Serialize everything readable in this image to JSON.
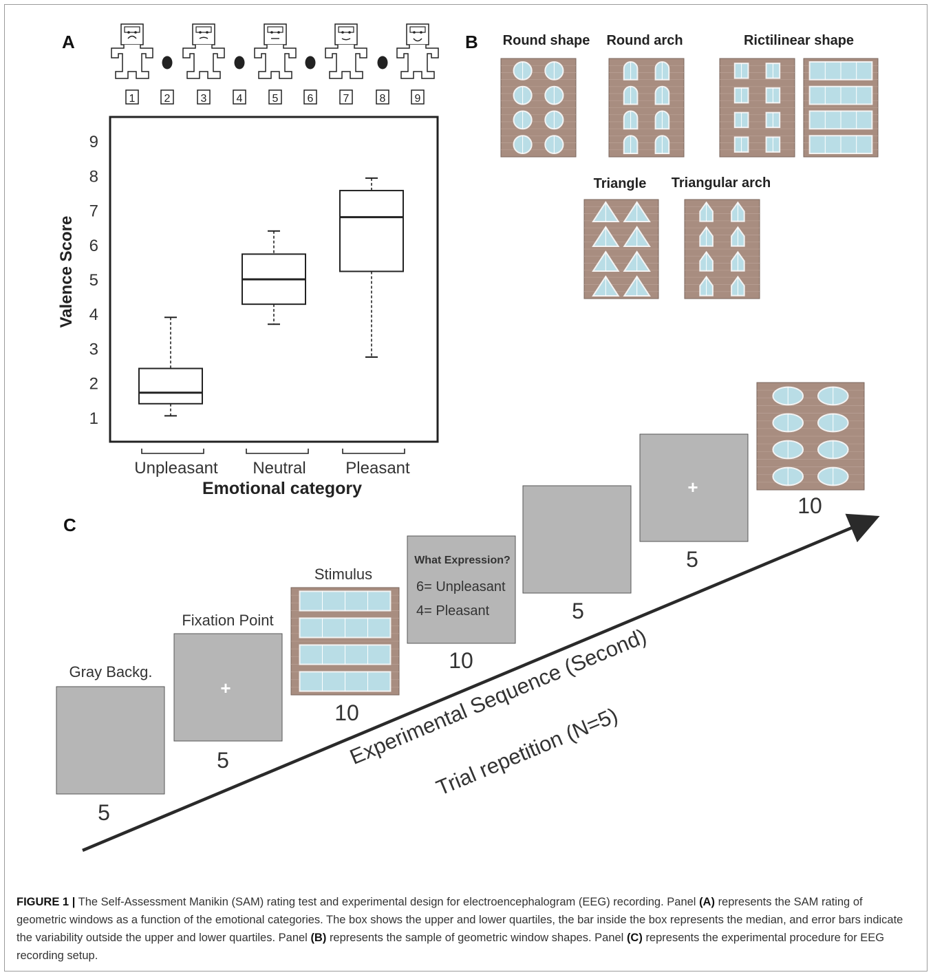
{
  "panels": {
    "a": "A",
    "b": "B",
    "c": "C"
  },
  "sam_scale": {
    "numbers": [
      "1",
      "2",
      "3",
      "4",
      "5",
      "6",
      "7",
      "8",
      "9"
    ]
  },
  "chart_data": {
    "type": "box",
    "ylabel": "Valence Score",
    "xlabel": "Emotional category",
    "ylim": [
      0.3,
      9.7
    ],
    "yticks": [
      1,
      2,
      3,
      4,
      5,
      6,
      7,
      8,
      9
    ],
    "categories": [
      "Unpleasant",
      "Neutral",
      "Pleasant"
    ],
    "boxes": [
      {
        "category": "Unpleasant",
        "whisker_low": 1.05,
        "q1": 1.4,
        "median": 1.72,
        "q3": 2.42,
        "whisker_high": 3.9
      },
      {
        "category": "Neutral",
        "whisker_low": 3.7,
        "q1": 4.28,
        "median": 5.0,
        "q3": 5.73,
        "whisker_high": 6.4
      },
      {
        "category": "Pleasant",
        "whisker_low": 2.75,
        "q1": 5.23,
        "median": 6.8,
        "q3": 7.57,
        "whisker_high": 7.93
      }
    ],
    "grid": false
  },
  "shapes": {
    "round_shape": "Round shape",
    "round_arch": "Round arch",
    "rectilinear": "Rictilinear shape",
    "triangle": "Triangle",
    "triangular_arch": "Triangular arch"
  },
  "sequence": {
    "gray_label": "Gray Backg.",
    "fixation_label": "Fixation Point",
    "stimulus_label": "Stimulus",
    "question_title": "What Expression?",
    "question_line1": "6= Unpleasant",
    "question_line2": "4= Pleasant",
    "durations": [
      "5",
      "5",
      "10",
      "10",
      "5",
      "5",
      "10"
    ],
    "cross": "+",
    "axis_label": "Experimental Sequence (Second)",
    "trial_label": "Trial repetition (N=5)"
  },
  "caption": {
    "lead": "FIGURE 1",
    "sep": "|",
    "part1": "The Self-Assessment Manikin (SAM) rating test and experimental design for electroencephalogram (EEG) recording. Panel",
    "ref_a": "(A)",
    "part2": "represents the SAM rating of geometric windows as a function of the emotional categories. The box shows the upper and lower quartiles, the bar inside the box represents the median, and error bars indicate the variability outside the upper and lower quartiles. Panel",
    "ref_b": "(B)",
    "part3": "represents the sample of geometric window shapes. Panel",
    "ref_c": "(C)",
    "part4": "represents the experimental procedure for EEG recording setup."
  },
  "colors": {
    "brick": "#a88d80",
    "glass": "#b9dde6",
    "gray_screen": "#b6b6b6",
    "frame": "#9a9a9a"
  }
}
